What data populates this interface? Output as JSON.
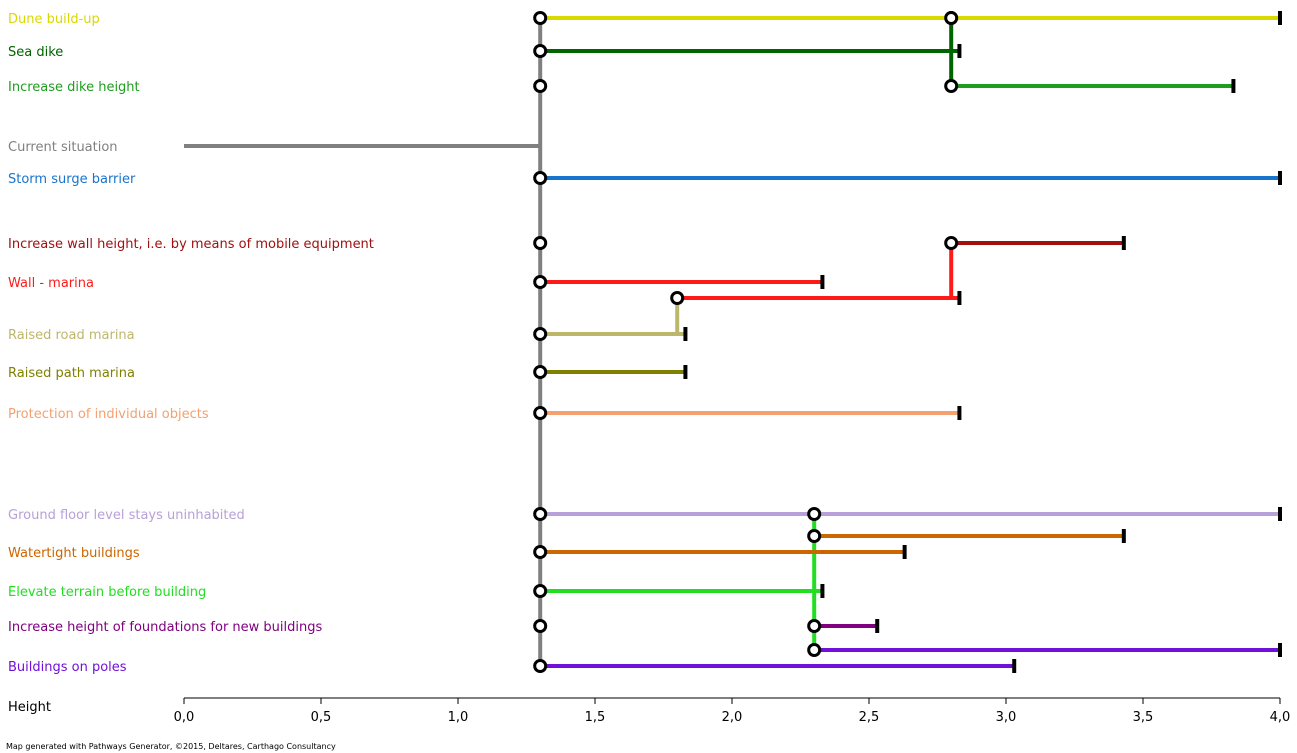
{
  "chart_data": {
    "type": "adaptation-pathways-map",
    "xlabel": "Height",
    "xlim": [
      0,
      4.0
    ],
    "x_ticks": [
      0.0,
      0.5,
      1.0,
      1.5,
      2.0,
      2.5,
      3.0,
      3.5,
      4.0
    ],
    "x_tick_labels": [
      "0,0",
      "0,5",
      "1,0",
      "1,5",
      "2,0",
      "2,5",
      "3,0",
      "3,5",
      "4,0"
    ],
    "footer": "Map generated with Pathways Generator, ©2015, Deltares, Carthago Consultancy",
    "current_situation": {
      "name": "Current situation",
      "color": "#808080",
      "start": 0.0,
      "end": 1.3
    },
    "trunk": {
      "x": 1.3,
      "color": "#808080"
    },
    "actions": [
      {
        "name": "Dune build-up",
        "color": "#d9d900"
      },
      {
        "name": "Sea dike",
        "color": "#006400"
      },
      {
        "name": "Increase dike height",
        "color": "#1e9e1e"
      },
      {
        "name": "Storm surge barrier",
        "color": "#1874cd"
      },
      {
        "name": "Increase wall height, i.e. by means of mobile equipment",
        "color": "#a01010"
      },
      {
        "name": "Wall - marina",
        "color": "#ff1a1a"
      },
      {
        "name": "Raised road marina",
        "color": "#bdb76b"
      },
      {
        "name": "Raised path marina",
        "color": "#808000"
      },
      {
        "name": "Protection of individual objects",
        "color": "#f4a070"
      },
      {
        "name": "Ground floor level stays uninhabited",
        "color": "#b8a0d8"
      },
      {
        "name": "Watertight buildings",
        "color": "#cc6600"
      },
      {
        "name": "Elevate terrain before building",
        "color": "#22dd22"
      },
      {
        "name": "Increase height of foundations for new buildings",
        "color": "#800080"
      },
      {
        "name": "Buildings on poles",
        "color": "#7010d8"
      }
    ],
    "segments": [
      {
        "action": 0,
        "start": 1.3,
        "end": 2.8,
        "lane": 0
      },
      {
        "action": 0,
        "start": 2.8,
        "end": 4.0,
        "lane": 0
      },
      {
        "action": 1,
        "start": 1.3,
        "end": 2.83,
        "lane": 0
      },
      {
        "action": 2,
        "start": 2.8,
        "end": 3.83,
        "lane": 0
      },
      {
        "action": 3,
        "start": 1.3,
        "end": 4.0,
        "lane": 0
      },
      {
        "action": 4,
        "start": 2.8,
        "end": 3.43,
        "lane": 0
      },
      {
        "action": 5,
        "start": 1.3,
        "end": 2.33,
        "lane": 0
      },
      {
        "action": 5,
        "start": 1.8,
        "end": 2.83,
        "lane": 1
      },
      {
        "action": 6,
        "start": 1.3,
        "end": 1.83,
        "lane": 0
      },
      {
        "action": 7,
        "start": 1.3,
        "end": 1.83,
        "lane": 0
      },
      {
        "action": 8,
        "start": 1.3,
        "end": 2.83,
        "lane": 0
      },
      {
        "action": 9,
        "start": 1.3,
        "end": 4.0,
        "lane": 0
      },
      {
        "action": 10,
        "start": 2.3,
        "end": 3.43,
        "lane": -1
      },
      {
        "action": 10,
        "start": 1.3,
        "end": 2.63,
        "lane": 0
      },
      {
        "action": 11,
        "start": 1.3,
        "end": 2.33,
        "lane": 0
      },
      {
        "action": 12,
        "start": 2.3,
        "end": 2.53,
        "lane": 0
      },
      {
        "action": 13,
        "start": 2.3,
        "end": 4.0,
        "lane": -1
      },
      {
        "action": 13,
        "start": 1.3,
        "end": 3.03,
        "lane": 0
      }
    ],
    "start_nodes": [
      {
        "action": 0,
        "x": 1.3
      },
      {
        "action": 1,
        "x": 1.3
      },
      {
        "action": 2,
        "x": 1.3
      },
      {
        "action": 3,
        "x": 1.3
      },
      {
        "action": 4,
        "x": 1.3
      },
      {
        "action": 5,
        "x": 1.3
      },
      {
        "action": 6,
        "x": 1.3
      },
      {
        "action": 7,
        "x": 1.3
      },
      {
        "action": 8,
        "x": 1.3
      },
      {
        "action": 9,
        "x": 1.3
      },
      {
        "action": 10,
        "x": 1.3
      },
      {
        "action": 11,
        "x": 1.3
      },
      {
        "action": 12,
        "x": 1.3
      },
      {
        "action": 13,
        "x": 1.3
      }
    ],
    "transfer_nodes": [
      {
        "action": 0,
        "lane": 0,
        "x": 2.8
      },
      {
        "action": 2,
        "lane": 0,
        "x": 2.8
      },
      {
        "action": 4,
        "lane": 0,
        "x": 2.8
      },
      {
        "action": 5,
        "lane": 1,
        "x": 1.8
      },
      {
        "action": 9,
        "lane": 0,
        "x": 2.3
      },
      {
        "action": 10,
        "lane": -1,
        "x": 2.3
      },
      {
        "action": 12,
        "lane": 0,
        "x": 2.3
      },
      {
        "action": 13,
        "lane": -1,
        "x": 2.3
      }
    ],
    "transfers": [
      {
        "x": 2.8,
        "from": [
          1,
          0
        ],
        "to": [
          0,
          0
        ],
        "color": "#006400"
      },
      {
        "x": 2.8,
        "from": [
          1,
          0
        ],
        "to": [
          2,
          0
        ],
        "color": "#006400"
      },
      {
        "x": 2.8,
        "from": [
          5,
          1
        ],
        "to": [
          4,
          0
        ],
        "color": "#ff1a1a"
      },
      {
        "x": 1.8,
        "from": [
          6,
          0
        ],
        "to": [
          5,
          1
        ],
        "color": "#bdb76b"
      },
      {
        "x": 2.3,
        "from": [
          9,
          0
        ],
        "to": [
          13,
          -1
        ],
        "color": "#22dd22"
      }
    ]
  }
}
